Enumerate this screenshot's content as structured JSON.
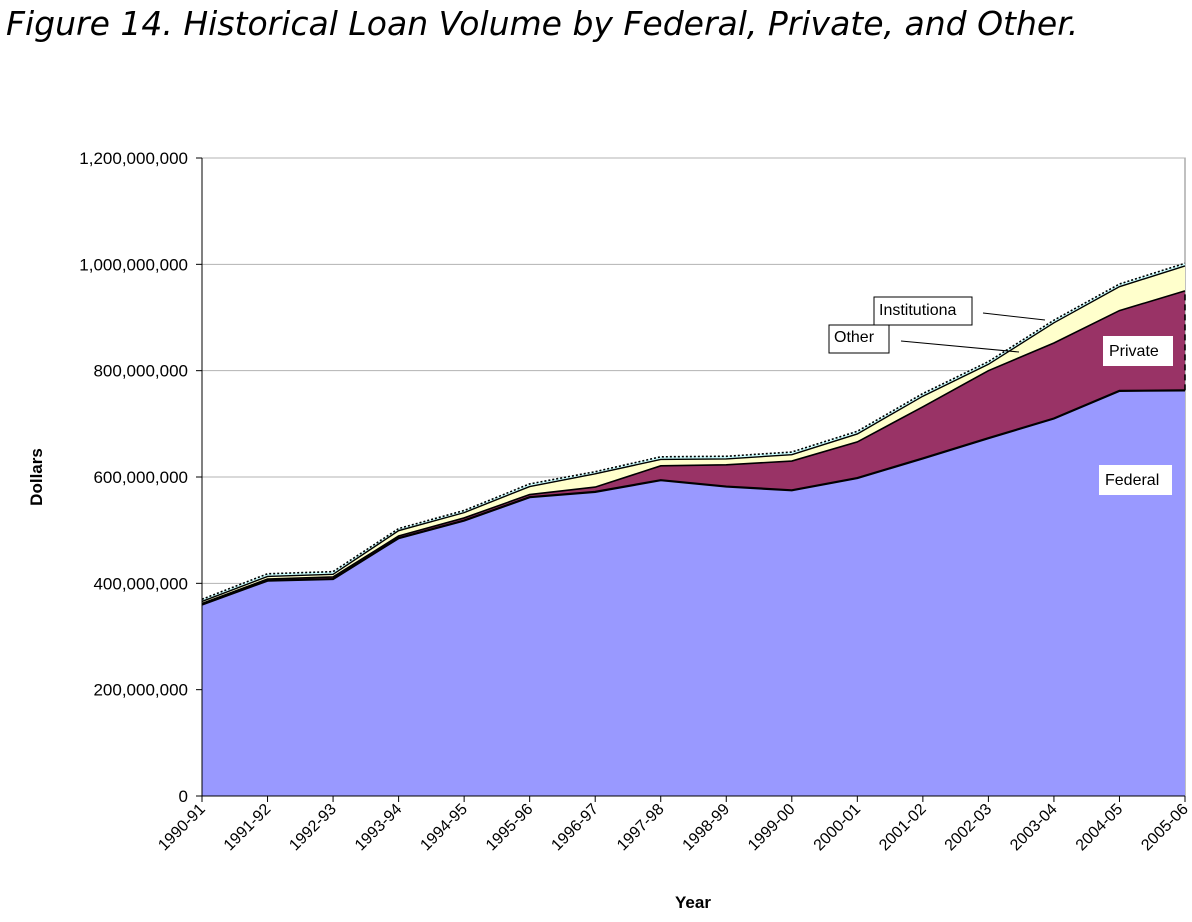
{
  "title": "Figure 14. Historical Loan Volume by Federal, Private, and Other.",
  "chart_data": {
    "type": "area",
    "stacked": true,
    "xlabel": "Year",
    "ylabel": "Dollars",
    "ylim": [
      0,
      1200000000
    ],
    "yticks": [
      0,
      200000000,
      400000000,
      600000000,
      800000000,
      1000000000,
      1200000000
    ],
    "ytick_labels": [
      "0",
      "200,000,000",
      "400,000,000",
      "600,000,000",
      "800,000,000",
      "1,000,000,000",
      "1,200,000,000"
    ],
    "categories": [
      "1990-91",
      "1991-92",
      "1992-93",
      "1993-94",
      "1994-95",
      "1995-96",
      "1996-97",
      "1997-98",
      "1998-99",
      "1999-00",
      "2000-01",
      "2001-02",
      "2002-03",
      "2003-04",
      "2004-05",
      "2005-06"
    ],
    "grid": "horizontal",
    "series": [
      {
        "name": "Federal",
        "color": "#9999ff",
        "values": [
          360000000,
          405000000,
          408000000,
          485000000,
          518000000,
          562000000,
          572000000,
          594000000,
          582000000,
          575000000,
          598000000,
          635000000,
          673000000,
          710000000,
          762000000,
          763000000
        ]
      },
      {
        "name": "Private",
        "color": "#993366",
        "values": [
          2000000,
          3000000,
          4000000,
          4000000,
          5000000,
          5000000,
          9000000,
          27000000,
          41000000,
          55000000,
          68000000,
          97000000,
          127000000,
          142000000,
          151000000,
          187000000
        ]
      },
      {
        "name": "Other",
        "color": "#ffffcc",
        "values": [
          4000000,
          5000000,
          5000000,
          10000000,
          10000000,
          15000000,
          25000000,
          12000000,
          11000000,
          12000000,
          15000000,
          20000000,
          12000000,
          38000000,
          45000000,
          47000000
        ]
      },
      {
        "name": "Institutiona",
        "color": "#ccffff",
        "values": [
          4000000,
          5000000,
          5000000,
          4000000,
          4000000,
          5000000,
          4000000,
          5000000,
          5000000,
          5000000,
          5000000,
          5000000,
          5000000,
          5000000,
          5000000,
          5000000
        ]
      }
    ]
  }
}
